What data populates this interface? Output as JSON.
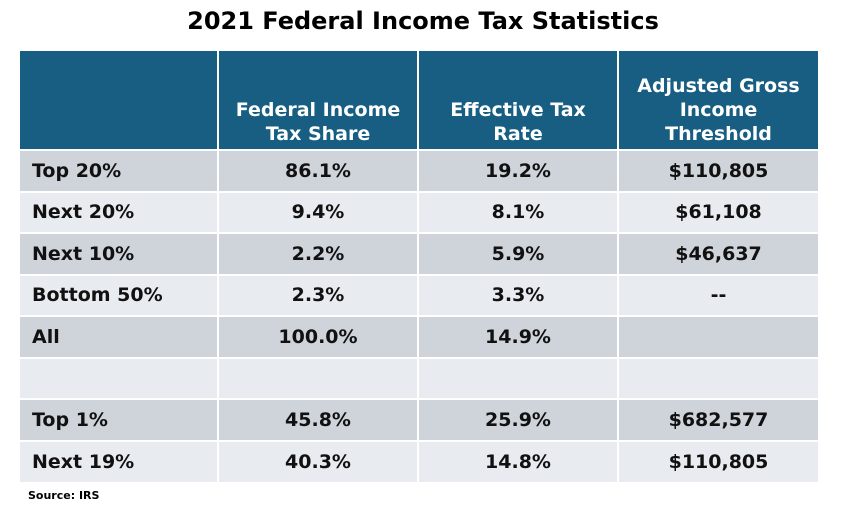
{
  "chart_data": {
    "type": "table",
    "title": "2021 Federal Income Tax Statistics",
    "columns": [
      "",
      "Federal Income Tax Share",
      "Effective Tax Rate",
      "Adjusted Gross Income Threshold"
    ],
    "rows": [
      [
        "Top 20%",
        "86.1%",
        "19.2%",
        "$110,805"
      ],
      [
        "Next 20%",
        "9.4%",
        "8.1%",
        "$61,108"
      ],
      [
        "Next 10%",
        "2.2%",
        "5.9%",
        "$46,637"
      ],
      [
        "Bottom 50%",
        "2.3%",
        "3.3%",
        "--"
      ],
      [
        "All",
        "100.0%",
        "14.9%",
        ""
      ],
      [
        "",
        "",
        "",
        ""
      ],
      [
        "Top 1%",
        "45.8%",
        "25.9%",
        "$682,577"
      ],
      [
        "Next 19%",
        "40.3%",
        "14.8%",
        "$110,805"
      ]
    ],
    "source": "Source: IRS",
    "colors": {
      "header_bg": "#175e82",
      "header_text": "#ffffff",
      "row_dark": "#cfd4db",
      "row_light": "#e8ebef"
    }
  }
}
